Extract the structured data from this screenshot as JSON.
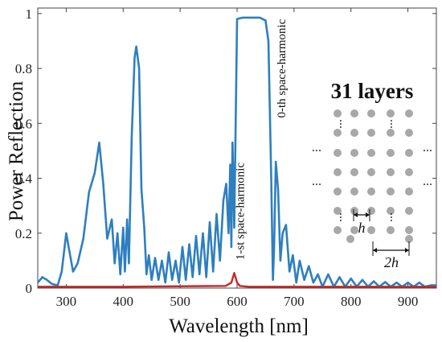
{
  "chart_data": {
    "type": "line",
    "xlabel": "Wavelength [nm]",
    "ylabel": "Power Reflection",
    "xlim": [
      250,
      950
    ],
    "ylim": [
      0,
      1.02
    ],
    "xticks": [
      300,
      400,
      500,
      600,
      700,
      800,
      900
    ],
    "yticks": [
      0,
      0.2,
      0.4,
      0.6,
      0.8,
      1
    ],
    "ytick_labels": [
      "0",
      "0.2",
      "0.4",
      "0.6",
      "0.8",
      "1"
    ],
    "grid": false,
    "series": [
      {
        "color": "#2e7fbf",
        "x": [
          250,
          258,
          266,
          275,
          285,
          292,
          300,
          305,
          312,
          320,
          330,
          340,
          350,
          358,
          365,
          372,
          380,
          385,
          390,
          395,
          400,
          403,
          407,
          410,
          415,
          420,
          423,
          428,
          432,
          437,
          441,
          445,
          450,
          456,
          462,
          468,
          474,
          480,
          486,
          492,
          498,
          504,
          510,
          516,
          522,
          528,
          534,
          540,
          546,
          552,
          558,
          564,
          570,
          576,
          581,
          585,
          588,
          590,
          592,
          595,
          600,
          610,
          620,
          630,
          640,
          650,
          655,
          660,
          663,
          665,
          668,
          672,
          676,
          680,
          686,
          692,
          698,
          704,
          710,
          718,
          726,
          734,
          742,
          750,
          760,
          770,
          780,
          790,
          800,
          810,
          820,
          830,
          840,
          850,
          860,
          870,
          880,
          890,
          900,
          910,
          920,
          930,
          940,
          950
        ],
        "values": [
          0.02,
          0.04,
          0.03,
          0.015,
          0.01,
          0.06,
          0.2,
          0.14,
          0.06,
          0.09,
          0.18,
          0.35,
          0.42,
          0.53,
          0.38,
          0.18,
          0.25,
          0.09,
          0.2,
          0.05,
          0.22,
          0.06,
          0.25,
          0.09,
          0.55,
          0.84,
          0.88,
          0.8,
          0.36,
          0.22,
          0.05,
          0.12,
          0.03,
          0.11,
          0.03,
          0.1,
          0.02,
          0.13,
          0.03,
          0.1,
          0.02,
          0.15,
          0.03,
          0.16,
          0.04,
          0.19,
          0.05,
          0.2,
          0.04,
          0.24,
          0.06,
          0.27,
          0.1,
          0.32,
          0.38,
          0.2,
          0.45,
          0.15,
          0.53,
          0.22,
          0.98,
          0.985,
          0.985,
          0.985,
          0.985,
          0.975,
          0.9,
          0.4,
          0.03,
          0.15,
          0.46,
          0.36,
          0.1,
          0.2,
          0.23,
          0.06,
          0.12,
          0.02,
          0.1,
          0.03,
          0.08,
          0.02,
          0.05,
          0.005,
          0.05,
          0.005,
          0.04,
          0.005,
          0.035,
          0.005,
          0.03,
          0.005,
          0.025,
          0.005,
          0.022,
          0.005,
          0.02,
          0.005,
          0.02,
          0.005,
          0.02,
          0.005,
          0.01,
          0.01
        ]
      },
      {
        "color": "#c82828",
        "x": [
          250,
          400,
          580,
          590,
          595,
          600,
          605,
          620,
          950
        ],
        "values": [
          0.005,
          0.005,
          0.008,
          0.02,
          0.055,
          0.02,
          0.008,
          0.005,
          0.005
        ]
      }
    ],
    "annotations": [
      {
        "text": "1-st space-harmonic",
        "x": 612,
        "y": 0.28
      },
      {
        "text": "0-th space-harmonic",
        "x": 685,
        "y": 0.8
      }
    ]
  },
  "inset": {
    "title": "31 layers",
    "dim_h": "h",
    "dim_2h": "2h",
    "ellipsis": "..."
  }
}
